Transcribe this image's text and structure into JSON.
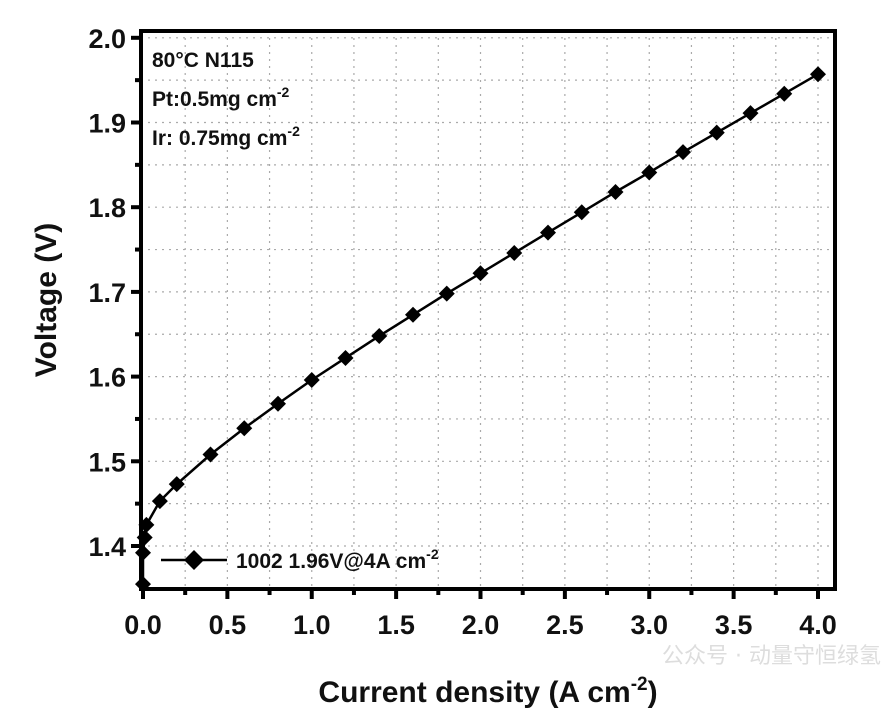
{
  "chart_data": {
    "type": "line",
    "xlabel": "Current density (A cm",
    "xlabel_sup": "-2",
    "xlabel_end": ")",
    "ylabel": "Voltage (V)",
    "xlim": [
      -0.02,
      4.1
    ],
    "ylim": [
      1.35,
      2.0
    ],
    "xticks": [
      "0.0",
      "0.5",
      "1.0",
      "1.5",
      "2.0",
      "2.5",
      "3.0",
      "3.5",
      "4.0"
    ],
    "yticks": [
      "1.4",
      "1.5",
      "1.6",
      "1.7",
      "1.8",
      "1.9",
      "2.0"
    ],
    "grid": true,
    "annotations": [
      {
        "text": "80°C N115",
        "sup": ""
      },
      {
        "text": "Pt:0.5mg cm",
        "sup": "-2"
      },
      {
        "text": "Ir: 0.75mg cm",
        "sup": "-2"
      }
    ],
    "legend": {
      "placement": "bottom-left",
      "label": "1002  1.96V@4A cm",
      "sup": "-2"
    },
    "series": [
      {
        "name": "1002",
        "color": "#000000",
        "marker": "diamond",
        "x": [
          0.0,
          0.0,
          0.01,
          0.02,
          0.1,
          0.2,
          0.4,
          0.6,
          0.8,
          1.0,
          1.2,
          1.4,
          1.6,
          1.8,
          2.0,
          2.2,
          2.4,
          2.6,
          2.8,
          3.0,
          3.2,
          3.4,
          3.6,
          3.8,
          4.0
        ],
        "y": [
          1.355,
          1.392,
          1.41,
          1.425,
          1.453,
          1.473,
          1.508,
          1.539,
          1.568,
          1.596,
          1.622,
          1.648,
          1.673,
          1.698,
          1.722,
          1.746,
          1.77,
          1.794,
          1.818,
          1.841,
          1.865,
          1.888,
          1.911,
          1.934,
          1.957
        ]
      }
    ]
  },
  "watermark": "公众号 · 动量守恒绿氢"
}
